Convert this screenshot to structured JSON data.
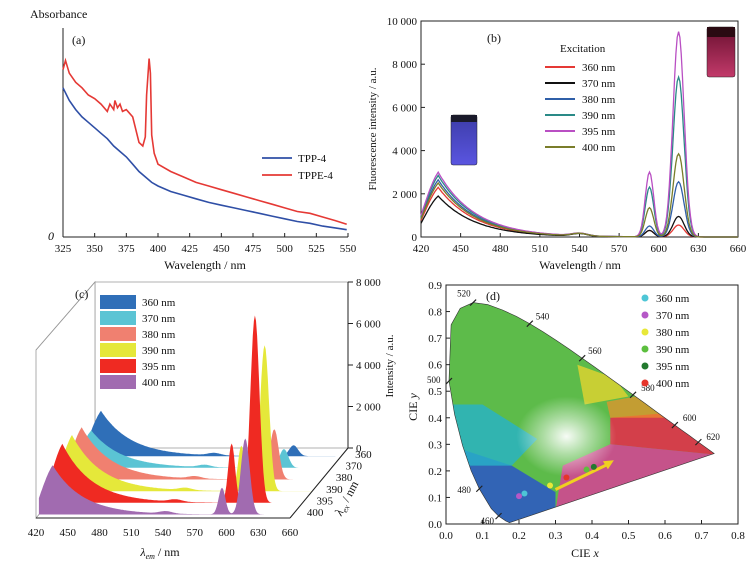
{
  "chart_data": [
    {
      "panel": "(a)",
      "type": "line",
      "ylabel": "Absorbance",
      "xlabel": "Wavelength / nm",
      "xlim": [
        325,
        550
      ],
      "x_ticks": [
        "325",
        "350",
        "375",
        "400",
        "425",
        "450",
        "475",
        "500",
        "525",
        "550"
      ],
      "y_ticks": [
        "0"
      ],
      "legend_position": "right",
      "series": [
        {
          "name": "TPP-4",
          "color": "#2f4fa6",
          "x": [
            325,
            330,
            335,
            340,
            345,
            350,
            355,
            360,
            365,
            370,
            375,
            380,
            385,
            390,
            395,
            400,
            410,
            420,
            430,
            440,
            450,
            460,
            470,
            480,
            490,
            500,
            510,
            520,
            530,
            540,
            549
          ],
          "y": [
            0.82,
            0.75,
            0.7,
            0.66,
            0.63,
            0.6,
            0.57,
            0.54,
            0.5,
            0.47,
            0.44,
            0.4,
            0.36,
            0.33,
            0.3,
            0.28,
            0.25,
            0.23,
            0.21,
            0.19,
            0.175,
            0.16,
            0.145,
            0.13,
            0.115,
            0.1,
            0.085,
            0.075,
            0.06,
            0.05,
            0.04
          ]
        },
        {
          "name": "TPPE-4",
          "color": "#e53935",
          "x": [
            325,
            327,
            330,
            335,
            340,
            345,
            350,
            355,
            360,
            362,
            365,
            366,
            368,
            370,
            372,
            375,
            380,
            385,
            388,
            390,
            391,
            393,
            394,
            395,
            397,
            400,
            410,
            420,
            430,
            440,
            450,
            460,
            470,
            480,
            490,
            500,
            510,
            520,
            530,
            540,
            549
          ],
          "y": [
            0.92,
            0.97,
            0.9,
            0.85,
            0.82,
            0.78,
            0.76,
            0.73,
            0.69,
            0.73,
            0.7,
            0.75,
            0.71,
            0.73,
            0.69,
            0.7,
            0.66,
            0.52,
            0.5,
            0.55,
            0.78,
            0.98,
            0.9,
            0.56,
            0.46,
            0.4,
            0.36,
            0.33,
            0.3,
            0.28,
            0.26,
            0.24,
            0.22,
            0.2,
            0.18,
            0.16,
            0.14,
            0.13,
            0.11,
            0.09,
            0.07
          ]
        }
      ]
    },
    {
      "panel": "(b)",
      "type": "line",
      "xlabel": "Wavelength / nm",
      "ylabel": "Fluorescence intensity / a.u.",
      "xlim": [
        420,
        660
      ],
      "ylim": [
        0,
        10000
      ],
      "x_ticks": [
        "420",
        "450",
        "480",
        "510",
        "540",
        "570",
        "600",
        "630",
        "660"
      ],
      "y_ticks": [
        "0",
        "2 000",
        "4 000",
        "6 000",
        "8 000",
        "10 000"
      ],
      "legend_title": "Excitation",
      "legend_position": "center",
      "series": [
        {
          "name": "360 nm",
          "color": "#e53935",
          "p1": 2300,
          "p2": 300,
          "p3": 550
        },
        {
          "name": "370 nm",
          "color": "#111111",
          "p1": 1900,
          "p2": 300,
          "p3": 950
        },
        {
          "name": "380 nm",
          "color": "#2f5fa8",
          "p1": 2650,
          "p2": 500,
          "p3": 2550
        },
        {
          "name": "390 nm",
          "color": "#2a8a87",
          "p1": 2850,
          "p2": 2300,
          "p3": 7400
        },
        {
          "name": "395 nm",
          "color": "#b94fc3",
          "p1": 3000,
          "p2": 3000,
          "p3": 9500
        },
        {
          "name": "400 nm",
          "color": "#7a7d2a",
          "p1": 2500,
          "p2": 1350,
          "p3": 3850
        }
      ]
    },
    {
      "panel": "(c)",
      "type": "area",
      "xlabel": "λem / nm",
      "xlabel_main": "λ",
      "xlabel_sub": "em",
      "xlabel_unit": " / nm",
      "zlabel_main": "λ",
      "zlabel_sub": "ex",
      "zlabel_unit": " / nm",
      "ylabel": "Intensity / a.u.",
      "x_ticks": [
        "420",
        "450",
        "480",
        "510",
        "540",
        "570",
        "600",
        "630",
        "660"
      ],
      "y_ticks": [
        "0",
        "2 000",
        "4 000",
        "6 000",
        "8 000"
      ],
      "z_ticks": [
        "360",
        "370",
        "380",
        "390",
        "395",
        "400"
      ],
      "legend_position": "top-left",
      "series": [
        {
          "name": "360 nm",
          "color": "#2f6fb8",
          "p1": 2300,
          "p2": 250,
          "p3": 550
        },
        {
          "name": "370 nm",
          "color": "#5bc4d4",
          "p1": 1900,
          "p2": 250,
          "p3": 950
        },
        {
          "name": "380 nm",
          "color": "#f08070",
          "p1": 2650,
          "p2": 450,
          "p3": 2550
        },
        {
          "name": "390 nm",
          "color": "#e5e83a",
          "p1": 2850,
          "p2": 2300,
          "p3": 7400
        },
        {
          "name": "395 nm",
          "color": "#ef2a22",
          "p1": 3000,
          "p2": 3000,
          "p3": 9500
        },
        {
          "name": "400 nm",
          "color": "#a16bb0",
          "p1": 2500,
          "p2": 1350,
          "p3": 3850
        }
      ]
    },
    {
      "panel": "(d)",
      "type": "scatter",
      "xlabel": "CIE x",
      "xlabel_main": "CIE ",
      "xlabel_var": "x",
      "ylabel": "CIE y",
      "ylabel_main": "CIE ",
      "ylabel_var": "y",
      "xlim": [
        0,
        0.8
      ],
      "ylim": [
        0,
        0.9
      ],
      "x_ticks": [
        "0.0",
        "0.1",
        "0.2",
        "0.3",
        "0.4",
        "0.5",
        "0.6",
        "0.7",
        "0.8"
      ],
      "y_ticks": [
        "0.0",
        "0.1",
        "0.2",
        "0.3",
        "0.4",
        "0.5",
        "0.6",
        "0.7",
        "0.8",
        "0.9"
      ],
      "wavelength_labels": [
        "460",
        "480",
        "500",
        "520",
        "540",
        "560",
        "580",
        "600",
        "620"
      ],
      "legend_position": "top-right",
      "series": [
        {
          "name": "360 nm",
          "color": "#4ec6d6",
          "x": 0.215,
          "y": 0.115
        },
        {
          "name": "370 nm",
          "color": "#b558c7",
          "x": 0.2,
          "y": 0.105
        },
        {
          "name": "380 nm",
          "color": "#e8e838",
          "x": 0.285,
          "y": 0.145
        },
        {
          "name": "390 nm",
          "color": "#5cbf3e",
          "x": 0.385,
          "y": 0.205
        },
        {
          "name": "395 nm",
          "color": "#22792e",
          "x": 0.405,
          "y": 0.215
        },
        {
          "name": "400 nm",
          "color": "#e5352b",
          "x": 0.33,
          "y": 0.175
        }
      ]
    }
  ]
}
